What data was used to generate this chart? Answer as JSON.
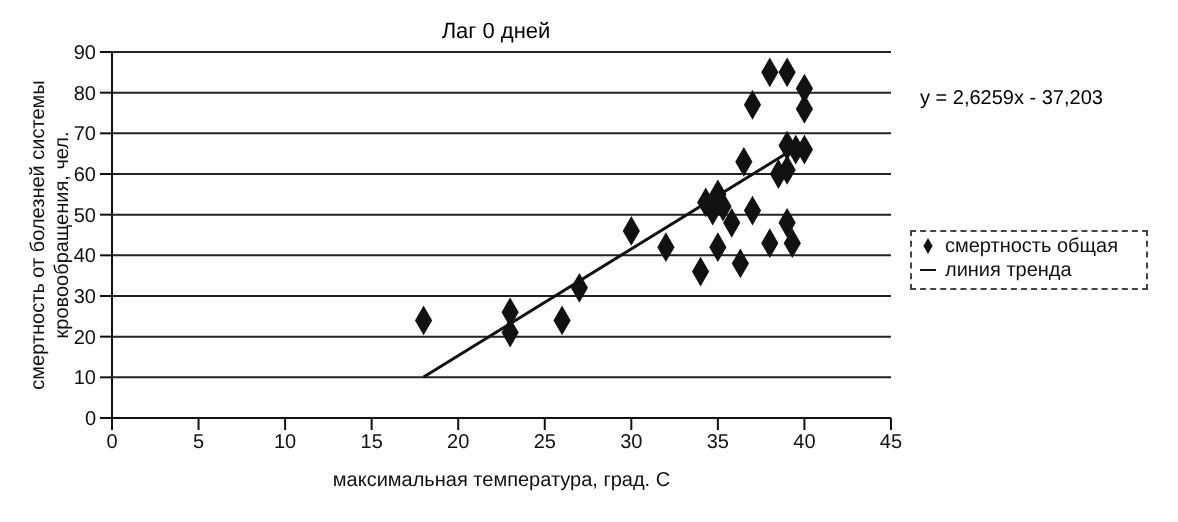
{
  "chart_data": {
    "type": "scatter",
    "title": "Лаг 0 дней",
    "xlabel": "максимальная температура, град. С",
    "ylabel": "смертность от болезней системы кровообращения, чел.",
    "xlim": [
      0,
      45
    ],
    "xticks": [
      0,
      5,
      10,
      15,
      20,
      25,
      30,
      35,
      40,
      45
    ],
    "ylim": [
      0,
      90
    ],
    "yticks": [
      0,
      10,
      20,
      30,
      40,
      50,
      60,
      70,
      80,
      90
    ],
    "grid": "y",
    "legend": "right",
    "annotations": [
      "y = 2,6259x - 37,203"
    ],
    "series": [
      {
        "name": "смертность общая",
        "type": "scatter",
        "marker": "diamond",
        "color": "#111111",
        "x": [
          18,
          23,
          23,
          26,
          27,
          30,
          32,
          34,
          34.3,
          34.7,
          35,
          35,
          35.3,
          35.8,
          36.3,
          36.5,
          37,
          37,
          38,
          38,
          38.5,
          39,
          39,
          39,
          39,
          39.3,
          40,
          40,
          40,
          39.5
        ],
        "values": [
          24,
          26,
          21,
          24,
          32,
          46,
          42,
          36,
          53,
          51,
          55,
          42,
          52,
          48,
          38,
          63,
          51,
          77,
          43,
          85,
          60,
          85,
          67,
          61,
          48,
          43,
          81,
          76,
          66,
          66
        ]
      },
      {
        "name": "линия тренда",
        "type": "line",
        "marker": "none",
        "color": "#111111",
        "x": [
          18,
          40
        ],
        "values": [
          10.1,
          67.8
        ]
      }
    ]
  }
}
